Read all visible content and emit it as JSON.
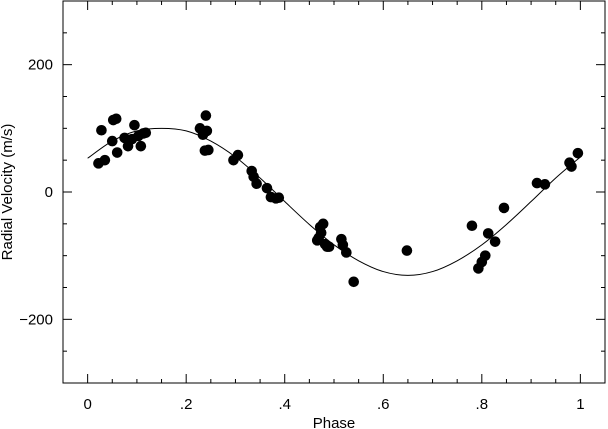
{
  "chart_data": {
    "type": "scatter",
    "title": "",
    "xlabel": "Phase",
    "ylabel": "Radial Velocity (m/s)",
    "xlim": [
      -0.05,
      1.05
    ],
    "ylim": [
      -300,
      300
    ],
    "x_ticks": [
      {
        "value": 0,
        "label": "0"
      },
      {
        "value": 0.2,
        "label": ".2"
      },
      {
        "value": 0.4,
        "label": ".4"
      },
      {
        "value": 0.6,
        "label": ".6"
      },
      {
        "value": 0.8,
        "label": ".8"
      },
      {
        "value": 1,
        "label": "1"
      }
    ],
    "y_ticks": [
      {
        "value": 200,
        "label": "200"
      },
      {
        "value": 0,
        "label": "0"
      },
      {
        "value": -200,
        "label": "−200"
      }
    ],
    "x_minor_step": 0.05,
    "y_minor_step": 50,
    "grid": false,
    "series": [
      {
        "type": "scatter",
        "marker": "filled-circle",
        "color": "#000000",
        "points": [
          {
            "x": 0.022,
            "y": 45
          },
          {
            "x": 0.028,
            "y": 97
          },
          {
            "x": 0.035,
            "y": 50
          },
          {
            "x": 0.05,
            "y": 80
          },
          {
            "x": 0.052,
            "y": 113
          },
          {
            "x": 0.058,
            "y": 115
          },
          {
            "x": 0.06,
            "y": 62
          },
          {
            "x": 0.075,
            "y": 85
          },
          {
            "x": 0.082,
            "y": 72
          },
          {
            "x": 0.09,
            "y": 83
          },
          {
            "x": 0.095,
            "y": 105
          },
          {
            "x": 0.103,
            "y": 88
          },
          {
            "x": 0.108,
            "y": 72
          },
          {
            "x": 0.113,
            "y": 92
          },
          {
            "x": 0.118,
            "y": 93
          },
          {
            "x": 0.228,
            "y": 100
          },
          {
            "x": 0.234,
            "y": 90
          },
          {
            "x": 0.238,
            "y": 65
          },
          {
            "x": 0.24,
            "y": 120
          },
          {
            "x": 0.242,
            "y": 96
          },
          {
            "x": 0.245,
            "y": 66
          },
          {
            "x": 0.296,
            "y": 50
          },
          {
            "x": 0.305,
            "y": 58
          },
          {
            "x": 0.333,
            "y": 33
          },
          {
            "x": 0.337,
            "y": 24
          },
          {
            "x": 0.343,
            "y": 13
          },
          {
            "x": 0.364,
            "y": 6
          },
          {
            "x": 0.372,
            "y": -8
          },
          {
            "x": 0.382,
            "y": -10
          },
          {
            "x": 0.388,
            "y": -9
          },
          {
            "x": 0.466,
            "y": -76
          },
          {
            "x": 0.469,
            "y": -72
          },
          {
            "x": 0.472,
            "y": -55
          },
          {
            "x": 0.474,
            "y": -64
          },
          {
            "x": 0.478,
            "y": -50
          },
          {
            "x": 0.482,
            "y": -82
          },
          {
            "x": 0.486,
            "y": -86
          },
          {
            "x": 0.49,
            "y": -86
          },
          {
            "x": 0.515,
            "y": -74
          },
          {
            "x": 0.518,
            "y": -83
          },
          {
            "x": 0.525,
            "y": -95
          },
          {
            "x": 0.54,
            "y": -141
          },
          {
            "x": 0.648,
            "y": -92
          },
          {
            "x": 0.78,
            "y": -53
          },
          {
            "x": 0.793,
            "y": -120
          },
          {
            "x": 0.8,
            "y": -110
          },
          {
            "x": 0.807,
            "y": -100
          },
          {
            "x": 0.813,
            "y": -65
          },
          {
            "x": 0.827,
            "y": -78
          },
          {
            "x": 0.845,
            "y": -25
          },
          {
            "x": 0.912,
            "y": 14
          },
          {
            "x": 0.928,
            "y": 12
          },
          {
            "x": 0.978,
            "y": 46
          },
          {
            "x": 0.982,
            "y": 40
          },
          {
            "x": 0.995,
            "y": 61
          }
        ]
      },
      {
        "type": "line",
        "color": "#000000",
        "points": [
          {
            "x": 0.0,
            "y": 53
          },
          {
            "x": 0.05,
            "y": 80
          },
          {
            "x": 0.1,
            "y": 96
          },
          {
            "x": 0.15,
            "y": 100
          },
          {
            "x": 0.2,
            "y": 96
          },
          {
            "x": 0.25,
            "y": 80
          },
          {
            "x": 0.3,
            "y": 55
          },
          {
            "x": 0.35,
            "y": 22
          },
          {
            "x": 0.4,
            "y": -15
          },
          {
            "x": 0.45,
            "y": -51
          },
          {
            "x": 0.5,
            "y": -83
          },
          {
            "x": 0.55,
            "y": -108
          },
          {
            "x": 0.6,
            "y": -125
          },
          {
            "x": 0.65,
            "y": -131
          },
          {
            "x": 0.7,
            "y": -125
          },
          {
            "x": 0.75,
            "y": -108
          },
          {
            "x": 0.8,
            "y": -83
          },
          {
            "x": 0.85,
            "y": -51
          },
          {
            "x": 0.9,
            "y": -15
          },
          {
            "x": 0.95,
            "y": 22
          },
          {
            "x": 1.0,
            "y": 55
          }
        ]
      }
    ]
  }
}
